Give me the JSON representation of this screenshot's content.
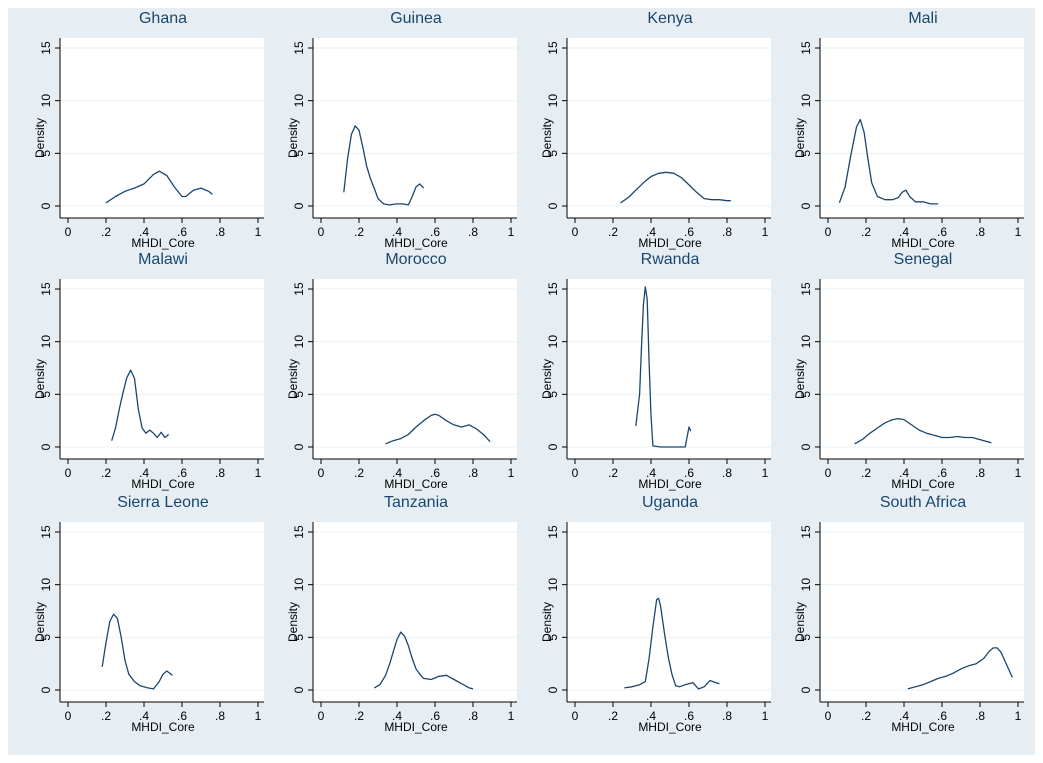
{
  "colors": {
    "background": "#e6eef3",
    "plot_background": "#ffffff",
    "line": "#1a476f",
    "title": "#1a476f",
    "grid": "#eaf2f3"
  },
  "chart_data": [
    {
      "type": "line",
      "title": "Ghana",
      "xlabel": "MHDI_Core",
      "ylabel": "Density",
      "xlim": [
        0,
        1
      ],
      "ylim": [
        0,
        15
      ],
      "xticks": [
        "0",
        ".2",
        ".4",
        ".6",
        ".8",
        "1"
      ],
      "yticks": [
        "0",
        "5",
        "10",
        "15"
      ],
      "grid": true,
      "x": [
        0.2,
        0.25,
        0.3,
        0.35,
        0.4,
        0.45,
        0.48,
        0.52,
        0.56,
        0.6,
        0.62,
        0.66,
        0.7,
        0.74,
        0.76
      ],
      "y": [
        0.3,
        0.9,
        1.4,
        1.7,
        2.1,
        3.0,
        3.3,
        2.9,
        1.8,
        0.9,
        0.9,
        1.5,
        1.7,
        1.4,
        1.1
      ]
    },
    {
      "type": "line",
      "title": "Guinea",
      "xlabel": "MHDI_Core",
      "ylabel": "Density",
      "xlim": [
        0,
        1
      ],
      "ylim": [
        0,
        15
      ],
      "xticks": [
        "0",
        ".2",
        ".4",
        ".6",
        ".8",
        "1"
      ],
      "yticks": [
        "0",
        "5",
        "10",
        "15"
      ],
      "grid": true,
      "x": [
        0.12,
        0.14,
        0.16,
        0.18,
        0.2,
        0.22,
        0.24,
        0.26,
        0.28,
        0.3,
        0.33,
        0.36,
        0.4,
        0.43,
        0.46,
        0.48,
        0.5,
        0.52,
        0.54
      ],
      "y": [
        1.3,
        4.5,
        6.8,
        7.6,
        7.2,
        5.6,
        3.8,
        2.6,
        1.7,
        0.7,
        0.2,
        0.1,
        0.2,
        0.2,
        0.1,
        0.9,
        1.8,
        2.1,
        1.7
      ]
    },
    {
      "type": "line",
      "title": "Kenya",
      "xlabel": "MHDI_Core",
      "ylabel": "Density",
      "xlim": [
        0,
        1
      ],
      "ylim": [
        0,
        15
      ],
      "xticks": [
        "0",
        ".2",
        ".4",
        ".6",
        ".8",
        "1"
      ],
      "yticks": [
        "0",
        "5",
        "10",
        "15"
      ],
      "grid": true,
      "x": [
        0.24,
        0.28,
        0.32,
        0.36,
        0.4,
        0.44,
        0.48,
        0.52,
        0.56,
        0.6,
        0.64,
        0.68,
        0.72,
        0.76,
        0.8,
        0.82
      ],
      "y": [
        0.3,
        0.8,
        1.5,
        2.2,
        2.8,
        3.1,
        3.2,
        3.1,
        2.7,
        2.0,
        1.3,
        0.7,
        0.6,
        0.6,
        0.5,
        0.5
      ]
    },
    {
      "type": "line",
      "title": "Mali",
      "xlabel": "MHDI_Core",
      "ylabel": "Density",
      "xlim": [
        0,
        1
      ],
      "ylim": [
        0,
        15
      ],
      "xticks": [
        "0",
        ".2",
        ".4",
        ".6",
        ".8",
        "1"
      ],
      "yticks": [
        "0",
        "5",
        "10",
        "15"
      ],
      "grid": true,
      "x": [
        0.06,
        0.09,
        0.12,
        0.15,
        0.17,
        0.19,
        0.21,
        0.23,
        0.26,
        0.3,
        0.34,
        0.37,
        0.39,
        0.41,
        0.43,
        0.46,
        0.5,
        0.54,
        0.58
      ],
      "y": [
        0.3,
        1.8,
        4.8,
        7.5,
        8.2,
        7.0,
        4.5,
        2.2,
        0.9,
        0.6,
        0.6,
        0.8,
        1.3,
        1.5,
        0.9,
        0.4,
        0.4,
        0.2,
        0.2
      ]
    },
    {
      "type": "line",
      "title": "Malawi",
      "xlabel": "MHDI_Core",
      "ylabel": "Density",
      "xlim": [
        0,
        1
      ],
      "ylim": [
        0,
        15
      ],
      "xticks": [
        "0",
        ".2",
        ".4",
        ".6",
        ".8",
        "1"
      ],
      "yticks": [
        "0",
        "5",
        "10",
        "15"
      ],
      "grid": true,
      "x": [
        0.23,
        0.25,
        0.27,
        0.29,
        0.31,
        0.33,
        0.35,
        0.37,
        0.39,
        0.41,
        0.43,
        0.45,
        0.47,
        0.49,
        0.51,
        0.53
      ],
      "y": [
        0.6,
        1.8,
        3.6,
        5.2,
        6.6,
        7.3,
        6.5,
        3.6,
        1.8,
        1.3,
        1.6,
        1.3,
        0.9,
        1.4,
        0.9,
        1.2
      ]
    },
    {
      "type": "line",
      "title": "Morocco",
      "xlabel": "MHDI_Core",
      "ylabel": "Density",
      "xlim": [
        0,
        1
      ],
      "ylim": [
        0,
        15
      ],
      "xticks": [
        "0",
        ".2",
        ".4",
        ".6",
        ".8",
        "1"
      ],
      "yticks": [
        "0",
        "5",
        "10",
        "15"
      ],
      "grid": true,
      "x": [
        0.34,
        0.38,
        0.42,
        0.46,
        0.5,
        0.54,
        0.58,
        0.6,
        0.62,
        0.66,
        0.7,
        0.74,
        0.78,
        0.82,
        0.86,
        0.89
      ],
      "y": [
        0.3,
        0.6,
        0.8,
        1.2,
        1.9,
        2.5,
        3.0,
        3.1,
        3.0,
        2.5,
        2.1,
        1.9,
        2.1,
        1.7,
        1.1,
        0.5
      ]
    },
    {
      "type": "line",
      "title": "Rwanda",
      "xlabel": "MHDI_Core",
      "ylabel": "Density",
      "xlim": [
        0,
        1
      ],
      "ylim": [
        0,
        15
      ],
      "xticks": [
        "0",
        ".2",
        ".4",
        ".6",
        ".8",
        "1"
      ],
      "yticks": [
        "0",
        "5",
        "10",
        "15"
      ],
      "grid": true,
      "x": [
        0.32,
        0.34,
        0.35,
        0.36,
        0.37,
        0.38,
        0.39,
        0.4,
        0.41,
        0.45,
        0.5,
        0.55,
        0.58,
        0.6,
        0.61
      ],
      "y": [
        2.0,
        5.0,
        9.5,
        13.5,
        15.2,
        14.0,
        8.0,
        3.0,
        0.1,
        0.0,
        0.0,
        0.0,
        0.0,
        1.9,
        1.5
      ]
    },
    {
      "type": "line",
      "title": "Senegal",
      "xlabel": "MHDI_Core",
      "ylabel": "Density",
      "xlim": [
        0,
        1
      ],
      "ylim": [
        0,
        15
      ],
      "xticks": [
        "0",
        ".2",
        ".4",
        ".6",
        ".8",
        "1"
      ],
      "yticks": [
        "0",
        "5",
        "10",
        "15"
      ],
      "grid": true,
      "x": [
        0.14,
        0.18,
        0.22,
        0.26,
        0.3,
        0.34,
        0.37,
        0.4,
        0.44,
        0.48,
        0.52,
        0.56,
        0.6,
        0.64,
        0.68,
        0.72,
        0.76,
        0.8,
        0.84,
        0.86
      ],
      "y": [
        0.3,
        0.7,
        1.3,
        1.8,
        2.3,
        2.6,
        2.7,
        2.6,
        2.1,
        1.6,
        1.3,
        1.1,
        0.9,
        0.9,
        1.0,
        0.9,
        0.9,
        0.7,
        0.5,
        0.4
      ]
    },
    {
      "type": "line",
      "title": "Sierra Leone",
      "xlabel": "MHDI_Core",
      "ylabel": "Density",
      "xlim": [
        0,
        1
      ],
      "ylim": [
        0,
        15
      ],
      "xticks": [
        "0",
        ".2",
        ".4",
        ".6",
        ".8",
        "1"
      ],
      "yticks": [
        "0",
        "5",
        "10",
        "15"
      ],
      "grid": true,
      "x": [
        0.18,
        0.2,
        0.22,
        0.24,
        0.26,
        0.28,
        0.3,
        0.32,
        0.35,
        0.38,
        0.42,
        0.45,
        0.48,
        0.5,
        0.52,
        0.55
      ],
      "y": [
        2.2,
        4.5,
        6.5,
        7.2,
        6.8,
        5.0,
        2.8,
        1.5,
        0.8,
        0.4,
        0.2,
        0.1,
        0.8,
        1.5,
        1.8,
        1.4
      ]
    },
    {
      "type": "line",
      "title": "Tanzania",
      "xlabel": "MHDI_Core",
      "ylabel": "Density",
      "xlim": [
        0,
        1
      ],
      "ylim": [
        0,
        15
      ],
      "xticks": [
        "0",
        ".2",
        ".4",
        ".6",
        ".8",
        "1"
      ],
      "yticks": [
        "0",
        "5",
        "10",
        "15"
      ],
      "grid": true,
      "x": [
        0.28,
        0.31,
        0.34,
        0.36,
        0.38,
        0.4,
        0.42,
        0.44,
        0.46,
        0.48,
        0.5,
        0.52,
        0.54,
        0.58,
        0.62,
        0.66,
        0.7,
        0.74,
        0.78,
        0.8
      ],
      "y": [
        0.2,
        0.5,
        1.4,
        2.4,
        3.6,
        4.8,
        5.5,
        5.1,
        4.2,
        3.0,
        2.0,
        1.5,
        1.1,
        1.0,
        1.3,
        1.4,
        1.0,
        0.6,
        0.2,
        0.1
      ]
    },
    {
      "type": "line",
      "title": "Uganda",
      "xlabel": "MHDI_Core",
      "ylabel": "Density",
      "xlim": [
        0,
        1
      ],
      "ylim": [
        0,
        15
      ],
      "xticks": [
        "0",
        ".2",
        ".4",
        ".6",
        ".8",
        "1"
      ],
      "yticks": [
        "0",
        "5",
        "10",
        "15"
      ],
      "grid": true,
      "x": [
        0.26,
        0.3,
        0.34,
        0.37,
        0.39,
        0.41,
        0.43,
        0.44,
        0.45,
        0.47,
        0.49,
        0.51,
        0.53,
        0.55,
        0.58,
        0.62,
        0.65,
        0.68,
        0.71,
        0.74,
        0.76
      ],
      "y": [
        0.2,
        0.3,
        0.5,
        0.8,
        3.0,
        6.0,
        8.6,
        8.7,
        8.0,
        5.5,
        3.2,
        1.5,
        0.4,
        0.3,
        0.5,
        0.7,
        0.1,
        0.3,
        0.9,
        0.7,
        0.6
      ]
    },
    {
      "type": "line",
      "title": "South Africa",
      "xlabel": "MHDI_Core",
      "ylabel": "Density",
      "xlim": [
        0,
        1
      ],
      "ylim": [
        0,
        15
      ],
      "xticks": [
        "0",
        ".2",
        ".4",
        ".6",
        ".8",
        "1"
      ],
      "yticks": [
        "0",
        "5",
        "10",
        "15"
      ],
      "grid": true,
      "x": [
        0.42,
        0.46,
        0.5,
        0.54,
        0.58,
        0.62,
        0.66,
        0.7,
        0.74,
        0.78,
        0.82,
        0.85,
        0.87,
        0.89,
        0.91,
        0.93,
        0.95,
        0.97
      ],
      "y": [
        0.1,
        0.3,
        0.5,
        0.8,
        1.1,
        1.3,
        1.6,
        2.0,
        2.3,
        2.5,
        3.0,
        3.7,
        4.0,
        4.0,
        3.6,
        2.8,
        2.0,
        1.2
      ]
    }
  ]
}
